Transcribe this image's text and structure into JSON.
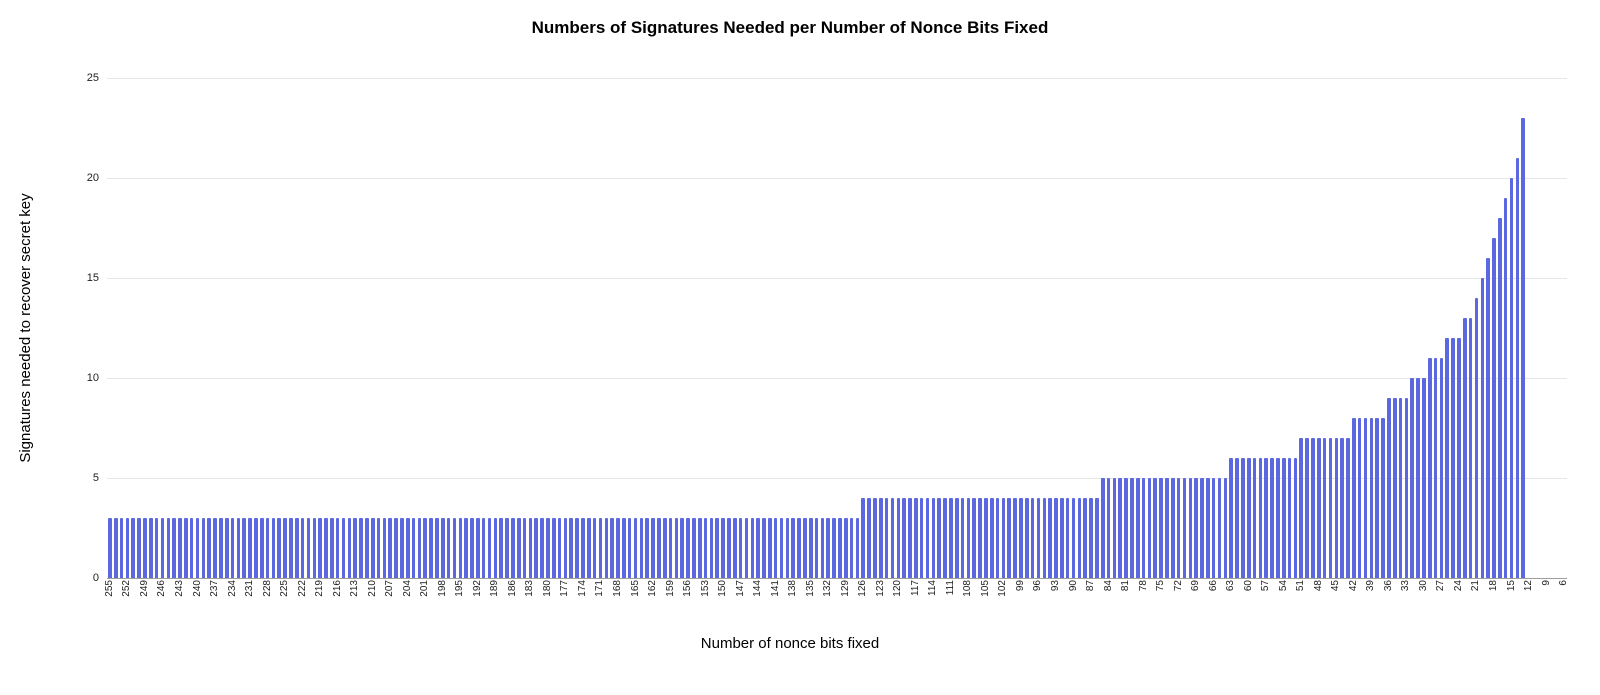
{
  "chart_data": {
    "type": "bar",
    "title": "Numbers of Signatures Needed per Number of Nonce Bits Fixed",
    "xlabel": "Number of nonce bits fixed",
    "ylabel": "Signatures needed to recover secret key",
    "series_name": "Signatures needed to recover secret key",
    "ylim": [
      0,
      25
    ],
    "yticks": [
      0,
      5,
      10,
      15,
      20,
      25
    ],
    "grid": true,
    "legend": "none",
    "x_axis": {
      "start": 255,
      "end": 6,
      "label_step": 3,
      "order": "descending"
    },
    "segments": [
      {
        "from": 255,
        "to": 127,
        "value": 3
      },
      {
        "from": 126,
        "to": 86,
        "value": 4
      },
      {
        "from": 85,
        "to": 64,
        "value": 5
      },
      {
        "from": 63,
        "to": 52,
        "value": 6
      },
      {
        "from": 51,
        "to": 43,
        "value": 7
      },
      {
        "from": 42,
        "to": 37,
        "value": 8
      },
      {
        "from": 36,
        "to": 33,
        "value": 9
      },
      {
        "from": 32,
        "to": 30,
        "value": 10
      },
      {
        "from": 29,
        "to": 27,
        "value": 11
      },
      {
        "from": 26,
        "to": 24,
        "value": 12
      },
      {
        "from": 23,
        "to": 22,
        "value": 13
      },
      {
        "from": 21,
        "to": 21,
        "value": 14
      },
      {
        "from": 20,
        "to": 20,
        "value": 15
      },
      {
        "from": 19,
        "to": 19,
        "value": 16
      },
      {
        "from": 18,
        "to": 18,
        "value": 17
      },
      {
        "from": 17,
        "to": 17,
        "value": 18
      },
      {
        "from": 16,
        "to": 16,
        "value": 19
      },
      {
        "from": 15,
        "to": 15,
        "value": 20
      },
      {
        "from": 14,
        "to": 14,
        "value": 21
      },
      {
        "from": 13,
        "to": 13,
        "value": 23
      }
    ],
    "colors": {
      "bar": "#5b68e0",
      "gridline": "#e6e6e6",
      "axis_line": "#9e9e9e",
      "tick_text": "#222222",
      "title_text": "#000000"
    }
  }
}
